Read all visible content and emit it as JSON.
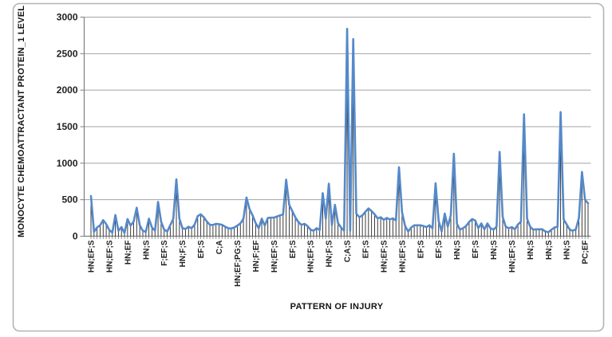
{
  "figure": {
    "border_color": "#b3b3b3",
    "background": "#ffffff"
  },
  "chart_data": {
    "type": "line",
    "title": "",
    "xlabel": "PATTERN OF INJURY",
    "ylabel": "MONOCYTE CHEMOATTRACTANT  PROTEIN_1  LEVEL",
    "ylim": [
      0,
      3000
    ],
    "y_ticks": [
      0,
      500,
      1000,
      1500,
      2000,
      2500,
      3000
    ],
    "grid": true,
    "legend": "none",
    "x_tick_label_interval": 6,
    "x_tick_labels": [
      "HN;EF;S",
      "HN;EF;S",
      "HN;EF",
      "HN;S",
      "F;EF;S",
      "HN;F;S",
      "EF;S",
      "C;A",
      "HN;EF;PG;S",
      "HN;F;EF",
      "HN;EF;S",
      "EF;S",
      "HN;EF;S",
      "HN;F;S",
      "C;A;S",
      "EF;S",
      "HN;EF;S",
      "HN;EF;S",
      "EF;S",
      "EF;S",
      "HN;S",
      "EF;S",
      "HN;S",
      "HN;EF;S",
      "HN;S",
      "HN;S",
      "HN;S",
      "PC;EF"
    ],
    "series": [
      {
        "values": [
          550,
          60,
          120,
          150,
          220,
          165,
          85,
          50,
          290,
          75,
          125,
          45,
          235,
          145,
          200,
          390,
          150,
          75,
          60,
          240,
          120,
          75,
          470,
          200,
          90,
          65,
          150,
          240,
          780,
          240,
          110,
          100,
          130,
          110,
          160,
          275,
          300,
          260,
          200,
          155,
          155,
          170,
          165,
          155,
          130,
          110,
          105,
          120,
          145,
          175,
          240,
          530,
          370,
          285,
          180,
          110,
          240,
          145,
          250,
          255,
          255,
          270,
          285,
          300,
          775,
          430,
          345,
          260,
          195,
          155,
          170,
          140,
          90,
          75,
          110,
          85,
          590,
          240,
          720,
          150,
          430,
          180,
          120,
          75,
          2840,
          75,
          2700,
          310,
          260,
          285,
          335,
          380,
          345,
          300,
          245,
          260,
          225,
          250,
          230,
          245,
          215,
          945,
          330,
          140,
          65,
          120,
          150,
          150,
          150,
          140,
          125,
          150,
          110,
          725,
          210,
          65,
          310,
          130,
          290,
          1130,
          170,
          90,
          110,
          140,
          195,
          235,
          215,
          110,
          175,
          95,
          175,
          110,
          90,
          130,
          1155,
          265,
          130,
          110,
          125,
          95,
          160,
          200,
          1670,
          240,
          130,
          90,
          95,
          95,
          95,
          65,
          55,
          90,
          120,
          130,
          1700,
          230,
          160,
          90,
          75,
          95,
          250,
          880,
          500,
          450
        ]
      }
    ],
    "marks": {
      "drop_lines": true
    },
    "colors": {
      "line": "#5589c9",
      "drop_line": "#262626",
      "gridline": "#a3a3a3",
      "axis": "#7f7f7f",
      "text": "#1f1f1f"
    }
  }
}
